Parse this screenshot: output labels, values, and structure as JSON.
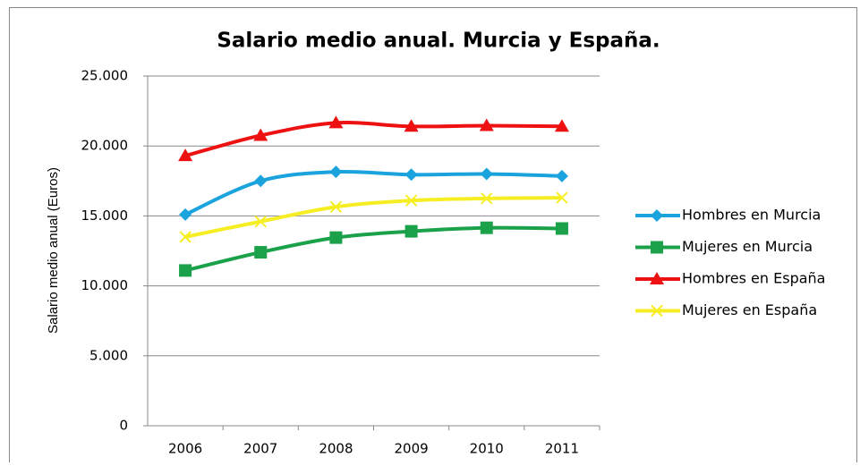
{
  "chart_data": {
    "type": "line",
    "title": "Salario medio anual. Murcia y España.",
    "y_label": "Salario medio anual (Euros)",
    "categories": [
      "2006",
      "2007",
      "2008",
      "2009",
      "2010",
      "2011"
    ],
    "series": [
      {
        "name": "Hombres en Murcia",
        "color": "#1aa3dc",
        "marker": "diamond",
        "values": [
          15100,
          17500,
          18150,
          17950,
          18000,
          17850
        ]
      },
      {
        "name": "Mujeres en Murcia",
        "color": "#1aa14a",
        "marker": "square",
        "values": [
          11100,
          12400,
          13450,
          13900,
          14150,
          14100
        ]
      },
      {
        "name": "Hombres en España",
        "color": "#ee1111",
        "marker": "triangle",
        "values": [
          19300,
          20750,
          21650,
          21400,
          21450,
          21400
        ]
      },
      {
        "name": "Mujeres en España",
        "color": "#f5ee22",
        "marker": "x",
        "values": [
          13500,
          14600,
          15650,
          16100,
          16250,
          16300
        ]
      }
    ],
    "ylim": [
      0,
      25000
    ],
    "yticks": [
      0,
      {
        "value": 5000,
        "label": "5.000"
      },
      {
        "value": 10000,
        "label": "10.000"
      },
      {
        "value": 15000,
        "label": "15.000"
      },
      {
        "value": 20000,
        "label": "20.000"
      },
      {
        "value": 25000,
        "label": "25.000"
      }
    ],
    "grid": true,
    "legend": "right",
    "smooth": true
  }
}
